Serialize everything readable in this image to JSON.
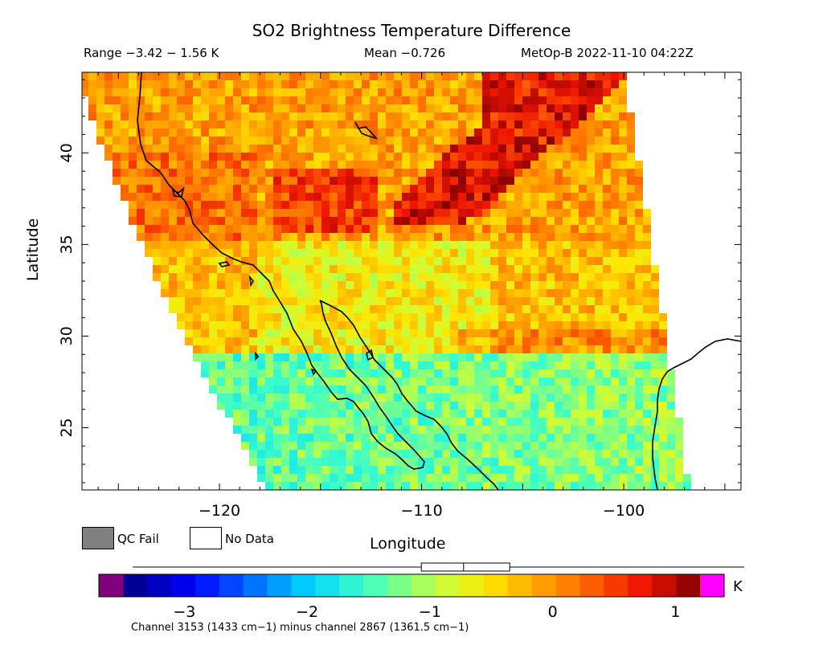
{
  "header": {
    "title": "SO2 Brightness Temperature Difference",
    "range": "Range −3.42 − 1.56 K",
    "mean": "Mean −0.726",
    "satellite_time": "MetOp-B 2022-11-10 04:22Z"
  },
  "axes": {
    "xlabel": "Longitude",
    "ylabel": "Latitude",
    "x_ticks": [
      {
        "value": -120,
        "label": "−120"
      },
      {
        "value": -110,
        "label": "−110"
      },
      {
        "value": -100,
        "label": "−100"
      }
    ],
    "y_ticks": [
      {
        "value": 25,
        "label": "25"
      },
      {
        "value": 30,
        "label": "30"
      },
      {
        "value": 35,
        "label": "35"
      },
      {
        "value": 40,
        "label": "40"
      }
    ],
    "xlim": [
      -126.8,
      -94.2
    ],
    "ylim": [
      21.6,
      44.4
    ]
  },
  "legend": {
    "qc_fail": "QC Fail",
    "no_data": "No Data",
    "qc_fail_color": "#808080",
    "no_data_color": "#ffffff"
  },
  "colorbar": {
    "unit": "K",
    "min": -3.5,
    "max": 1.2,
    "under_color": "#800080",
    "over_color": "#ff00ff",
    "ticks": [
      {
        "value": -3,
        "label": "−3"
      },
      {
        "value": -2,
        "label": "−2"
      },
      {
        "value": -1,
        "label": "−1"
      },
      {
        "value": 0,
        "label": "0"
      },
      {
        "value": 1,
        "label": "1"
      }
    ],
    "box_whisker": {
      "min": -3.42,
      "q1": -1.07,
      "median": -0.726,
      "q3": -0.35,
      "max": 1.56
    },
    "caption": "Channel 3153 (1433 cm−1) minus channel 2867 (1361.5 cm−1)"
  }
}
